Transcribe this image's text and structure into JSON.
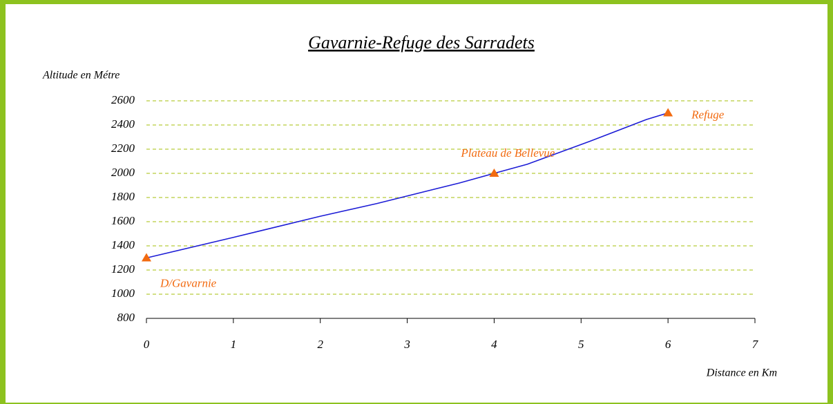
{
  "chart_data": {
    "type": "line",
    "title": "Gavarnie-Refuge des Sarradets",
    "ylabel": "Altitude en Métre",
    "xlabel": "Distance en Km",
    "series": [
      {
        "color": "#1c1cd6",
        "x": [
          0,
          1,
          2,
          2.65,
          3.6,
          4,
          4.38,
          5.1,
          5.75,
          6
        ],
        "values": [
          1300,
          1470,
          1645,
          1750,
          1920,
          2000,
          2075,
          2265,
          2445,
          2500
        ]
      }
    ],
    "markers": {
      "color": "#f26a10",
      "points": [
        {
          "x": 0,
          "y": 1300,
          "label": "D/Gavarnie"
        },
        {
          "x": 4,
          "y": 2000,
          "label": "Plateau de Bellevue"
        },
        {
          "x": 6,
          "y": 2500,
          "label": "Refuge"
        }
      ]
    },
    "xlim": [
      0,
      7
    ],
    "xticks": [
      0,
      1,
      2,
      3,
      4,
      5,
      6,
      7
    ],
    "ylim": [
      800,
      2600
    ],
    "yticks": [
      800,
      1000,
      1200,
      1400,
      1600,
      1800,
      2000,
      2200,
      2400,
      2600
    ],
    "grid": true,
    "grid_color": "#b8cc3a"
  }
}
